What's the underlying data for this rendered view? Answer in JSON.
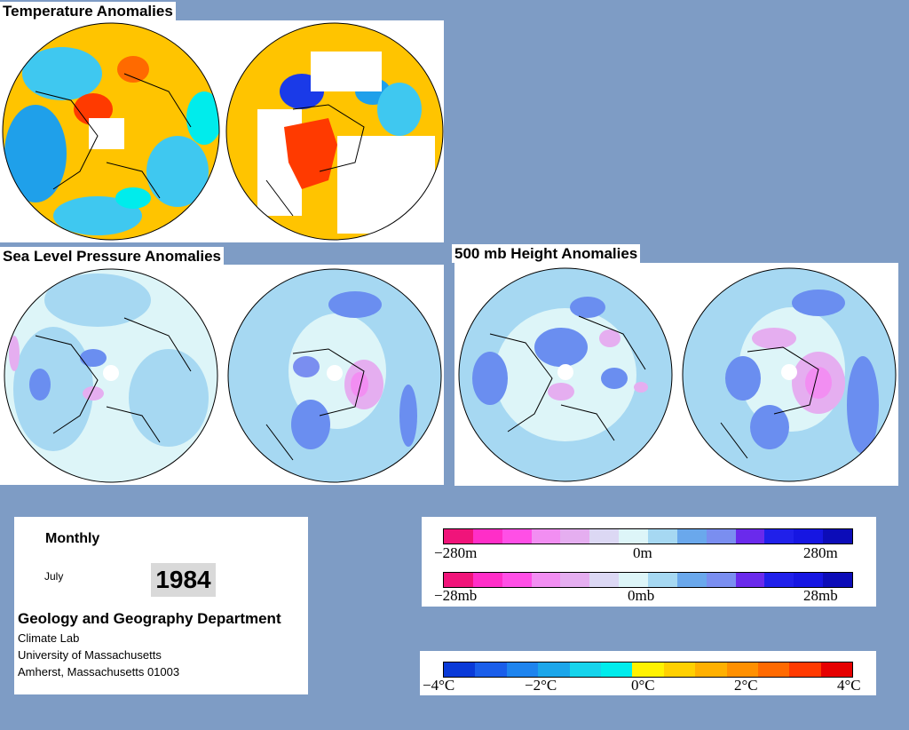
{
  "panels": {
    "temperature": {
      "title": "Temperature Anomalies"
    },
    "slp": {
      "title": "Sea Level Pressure Anomalies"
    },
    "height": {
      "title": "500 mb Height Anomalies"
    }
  },
  "info": {
    "period": "Monthly",
    "month": "July",
    "year": "1984",
    "department": "Geology and Geography Department",
    "lines": [
      "Climate Lab",
      "University of Massachusetts",
      "Amherst, Massachusetts 01003"
    ]
  },
  "scales": {
    "height": {
      "min": "−280m",
      "mid": "0m",
      "max": "280m"
    },
    "pressure": {
      "min": "−28mb",
      "mid": "0mb",
      "max": "28mb"
    },
    "temperature": {
      "labels": [
        "−4°C",
        "−2°C",
        "0°C",
        "2°C",
        "4°C"
      ]
    }
  },
  "colors": {
    "background": "#7e9cc5",
    "anomaly_scale": [
      "#f0147a",
      "#ff2ec8",
      "#ff4fe6",
      "#f28ef2",
      "#e5aef0",
      "#dcd8f4",
      "#ddf5f8",
      "#a6d8f2",
      "#6aa8ec",
      "#7a8ef0",
      "#6a2aec",
      "#2020ea",
      "#1616e2",
      "#0c0cb8"
    ],
    "temperature_scale": [
      "#0a3ad8",
      "#1a5eea",
      "#1e84ee",
      "#1ca6ea",
      "#16d4ec",
      "#00ecec",
      "#fff200",
      "#ffd000",
      "#ffb000",
      "#ff9000",
      "#ff6a00",
      "#ff3a00",
      "#e60000"
    ]
  }
}
